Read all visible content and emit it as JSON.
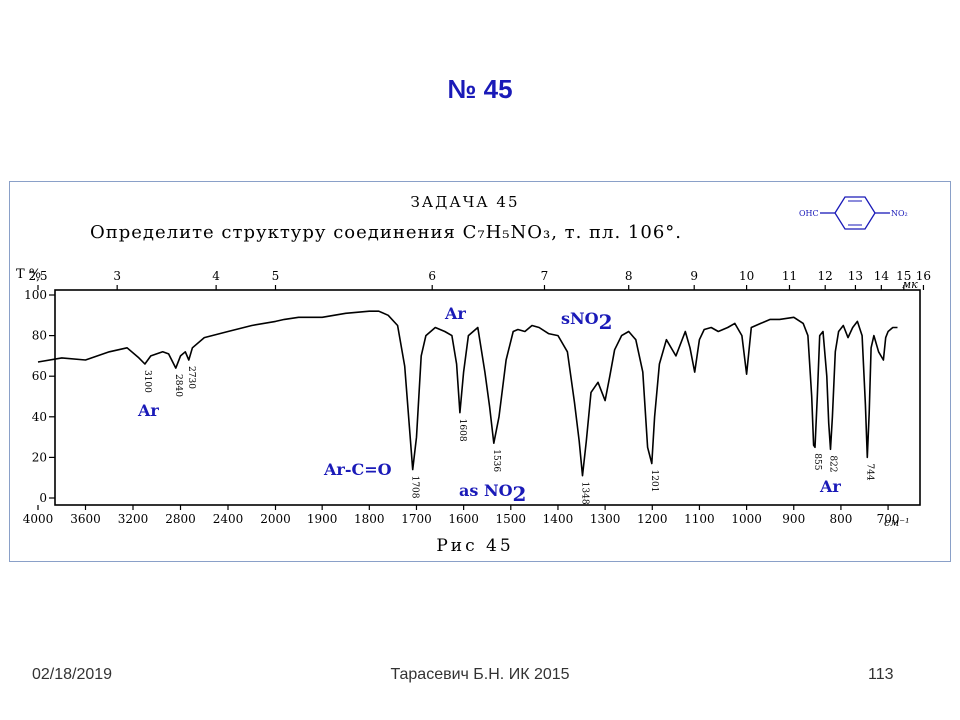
{
  "slide": {
    "title": "№ 45"
  },
  "figure": {
    "task_heading": "ЗАДАЧА 45",
    "task_text": "Определите структуру соединения C₇H₅NO₃, т. пл. 106°.",
    "caption": "Рис 45",
    "structure_labels": {
      "left": "OHC",
      "right": "NO₂"
    },
    "colors": {
      "annotation": "#1a1ab8",
      "curve": "#000000",
      "frame": "#8aa0c8"
    }
  },
  "chart_data": {
    "type": "line",
    "title": "",
    "ylabel": "T %",
    "x_top_unit": "мк",
    "x_bottom_unit": "см⁻¹",
    "y_ticks": [
      "100",
      "80",
      "60",
      "40",
      "20",
      "0"
    ],
    "y_tick_values": [
      100,
      80,
      60,
      40,
      20,
      0
    ],
    "x_top_ticks": [
      "2,5",
      "3",
      "4",
      "5",
      "6",
      "7",
      "8",
      "9",
      "10",
      "11",
      "12",
      "13",
      "14",
      "15",
      "16"
    ],
    "x_top_tick_values": [
      2.5,
      3,
      4,
      5,
      6,
      7,
      8,
      9,
      10,
      11,
      12,
      13,
      14,
      15,
      16
    ],
    "x_bottom_ticks": [
      "4000",
      "3600",
      "3200",
      "2800",
      "2400",
      "2000",
      "1900",
      "1800",
      "1700",
      "1600",
      "1500",
      "1400",
      "1300",
      "1200",
      "1100",
      "1000",
      "900",
      "800",
      "700"
    ],
    "x_bottom_tick_values": [
      4000,
      3600,
      3200,
      2800,
      2400,
      2000,
      1900,
      1800,
      1700,
      1600,
      1500,
      1400,
      1300,
      1200,
      1100,
      1000,
      900,
      800,
      700
    ],
    "ylim": [
      0,
      100
    ],
    "series": [
      {
        "x": [
          4000,
          3800,
          3600,
          3400,
          3250,
          3150,
          3100,
          3050,
          2950,
          2900,
          2840,
          2800,
          2760,
          2730,
          2700,
          2600,
          2400,
          2200,
          2000,
          1980,
          1950,
          1900,
          1850,
          1800,
          1780,
          1760,
          1740,
          1725,
          1715,
          1708,
          1700,
          1690,
          1680,
          1660,
          1640,
          1625,
          1615,
          1608,
          1600,
          1590,
          1570,
          1555,
          1545,
          1536,
          1525,
          1510,
          1495,
          1485,
          1470,
          1455,
          1440,
          1420,
          1400,
          1380,
          1365,
          1355,
          1348,
          1340,
          1330,
          1315,
          1300,
          1290,
          1280,
          1265,
          1250,
          1235,
          1220,
          1210,
          1201,
          1195,
          1185,
          1170,
          1150,
          1130,
          1120,
          1110,
          1100,
          1090,
          1075,
          1060,
          1040,
          1025,
          1010,
          1000,
          990,
          970,
          950,
          930,
          900,
          880,
          870,
          862,
          858,
          855,
          850,
          845,
          838,
          830,
          826,
          822,
          818,
          812,
          805,
          795,
          785,
          775,
          765,
          755,
          748,
          744,
          740,
          736,
          730,
          720,
          710,
          705,
          700,
          690,
          680
        ],
        "y": [
          67,
          69,
          68,
          72,
          74,
          69,
          66,
          70,
          72,
          71,
          64,
          70,
          72,
          68,
          74,
          79,
          82,
          85,
          87,
          88,
          89,
          89,
          91,
          92,
          92,
          90,
          85,
          65,
          35,
          14,
          30,
          70,
          80,
          84,
          82,
          80,
          66,
          42,
          62,
          80,
          84,
          62,
          45,
          27,
          40,
          68,
          82,
          83,
          82,
          85,
          84,
          81,
          80,
          72,
          47,
          28,
          11,
          28,
          52,
          57,
          48,
          60,
          73,
          80,
          82,
          78,
          62,
          25,
          17,
          40,
          66,
          78,
          70,
          82,
          74,
          62,
          78,
          83,
          84,
          82,
          84,
          86,
          80,
          61,
          84,
          86,
          88,
          88,
          89,
          86,
          80,
          50,
          26,
          25,
          50,
          80,
          82,
          60,
          37,
          24,
          40,
          72,
          82,
          85,
          79,
          84,
          87,
          80,
          46,
          20,
          42,
          74,
          80,
          72,
          68,
          79,
          82,
          84,
          84
        ]
      }
    ],
    "peak_labels": [
      {
        "x": 3100,
        "y": 66,
        "label": "3100"
      },
      {
        "x": 2840,
        "y": 64,
        "label": "2840"
      },
      {
        "x": 2730,
        "y": 68,
        "label": "2730"
      },
      {
        "x": 1708,
        "y": 14,
        "label": "1708"
      },
      {
        "x": 1608,
        "y": 42,
        "label": "1608"
      },
      {
        "x": 1536,
        "y": 27,
        "label": "1536"
      },
      {
        "x": 1348,
        "y": 11,
        "label": "1348"
      },
      {
        "x": 1201,
        "y": 17,
        "label": "1201"
      },
      {
        "x": 855,
        "y": 25,
        "label": "855"
      },
      {
        "x": 822,
        "y": 24,
        "label": "822"
      },
      {
        "x": 744,
        "y": 20,
        "label": "744"
      }
    ],
    "annotations": [
      {
        "id": "ar-3100",
        "text": "Ar",
        "sub": ""
      },
      {
        "id": "ar-1608",
        "text": "Ar",
        "sub": ""
      },
      {
        "id": "sno2",
        "text": "sNO",
        "sub": "2"
      },
      {
        "id": "ar-c-o",
        "text": "Ar-C=O",
        "sub": ""
      },
      {
        "id": "as-no2",
        "text": "as NO",
        "sub": "2"
      },
      {
        "id": "ar-744",
        "text": "Ar",
        "sub": ""
      }
    ]
  },
  "footer": {
    "date": "02/18/2019",
    "author": "Тарасевич Б.Н.  ИК 2015",
    "page": "113"
  }
}
